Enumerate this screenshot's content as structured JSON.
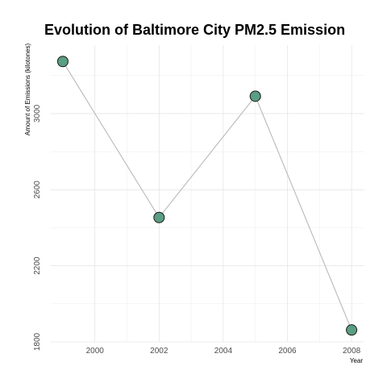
{
  "chart_data": {
    "type": "line",
    "title": "Evolution of Baltimore City PM2.5 Emission",
    "xlabel": "Year",
    "ylabel": "Amount of Emissions (kilotones)",
    "x": [
      1999,
      2002,
      2005,
      2008
    ],
    "series": [
      {
        "values": [
          3274.2,
          2453.9,
          3091.4,
          1862.3
        ]
      }
    ],
    "xlim": [
      1999,
      2008
    ],
    "ylim": [
      1800,
      3300
    ],
    "x_ticks": [
      "2000",
      "2002",
      "2004",
      "2006",
      "2008"
    ],
    "y_ticks": [
      "1800",
      "2200",
      "2600",
      "3000"
    ],
    "grid": true,
    "legend": "none",
    "line_color": "#b3b3b3",
    "point_fill": "#5a9e83",
    "point_stroke": "#1a1a1a"
  }
}
